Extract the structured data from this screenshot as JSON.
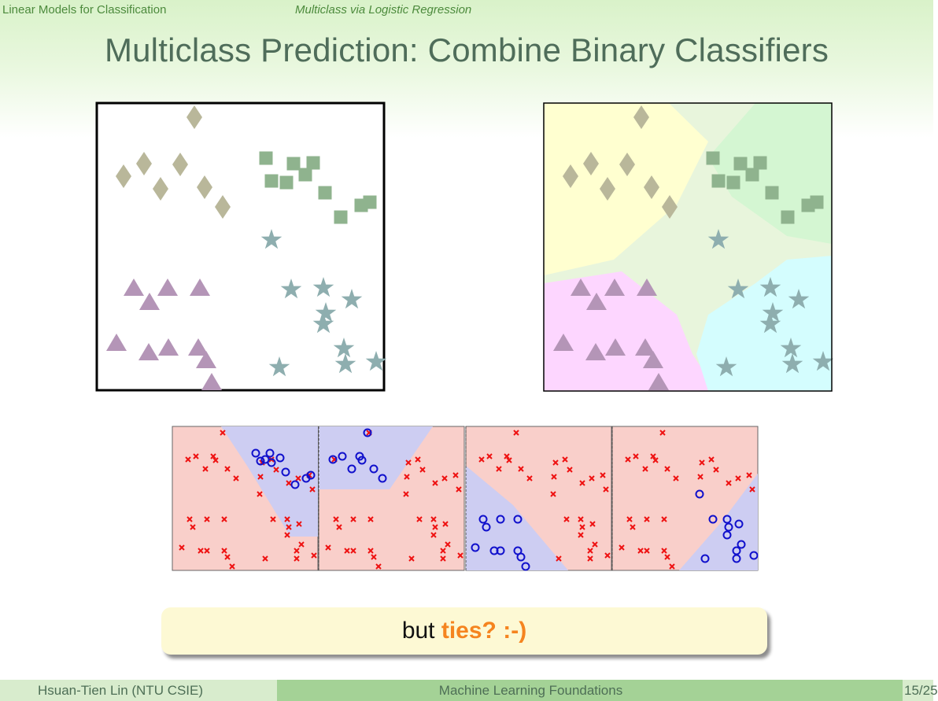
{
  "header": {
    "section": "Linear Models for Classification",
    "subsection": "Multiclass via Logistic Regression"
  },
  "slide": {
    "title": "Multiclass Prediction: Combine Binary Classifiers"
  },
  "callout": {
    "text_before": "but ",
    "text_emphasis": "ties? :-)"
  },
  "footer": {
    "author": "Hsuan-Tien Lin  (NTU CSIE)",
    "course": "Machine Learning Foundations",
    "page": "15/25"
  },
  "colors": {
    "diamond": "#b9b79a",
    "square": "#8fb38e",
    "triangle": "#b495b7",
    "star": "#8eaeaf",
    "region_diamond": "#ffffd0",
    "region_square": "#d4f6d2",
    "region_triangle": "#fdd6ff",
    "region_star": "#d4fdfe",
    "region_mixed": "#e8f5dc",
    "binary_negative_region": "#f9cfca",
    "binary_positive_region": "#cdcdf2",
    "cross": "#ee1111",
    "circle": "#1010cc"
  },
  "icons": {
    "class_shapes": [
      "diamond",
      "square",
      "triangle",
      "star"
    ],
    "binary_markers": [
      "cross",
      "circle"
    ]
  }
}
